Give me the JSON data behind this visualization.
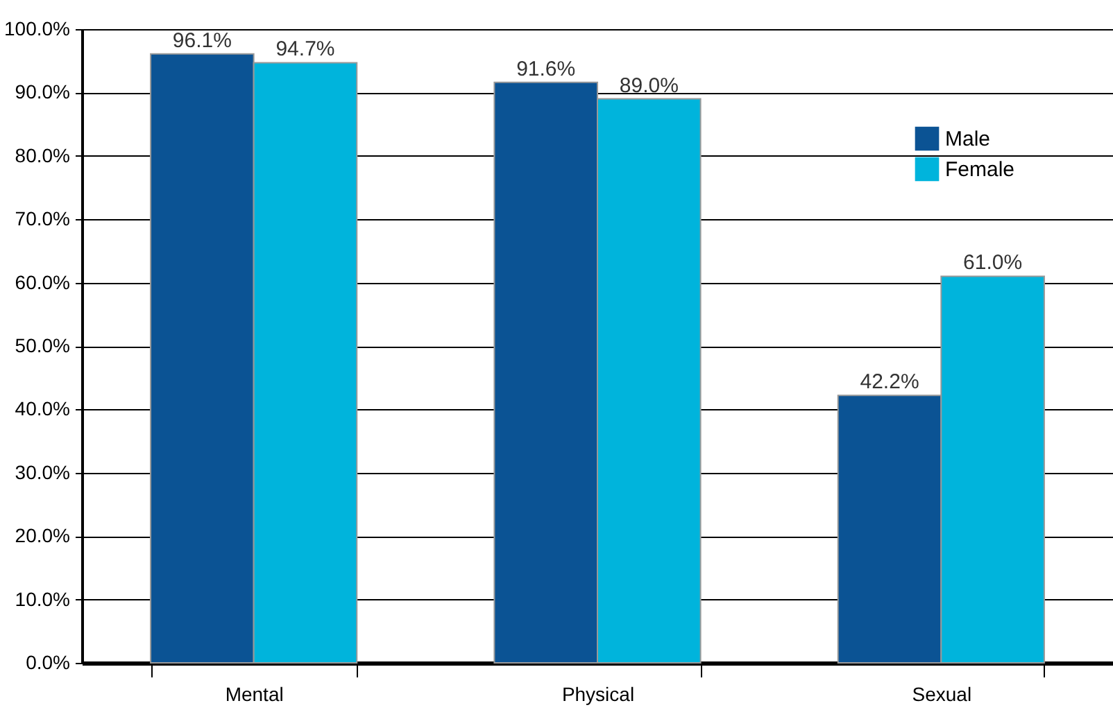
{
  "chart_data": {
    "type": "bar",
    "categories": [
      "Mental",
      "Physical",
      "Sexual"
    ],
    "series": [
      {
        "name": "Male",
        "color": "#0b5394",
        "values": [
          96.1,
          91.6,
          42.2
        ],
        "value_labels": [
          "96.1%",
          "91.6%",
          "42.2%"
        ]
      },
      {
        "name": "Female",
        "color": "#00b4dc",
        "values": [
          94.7,
          89.0,
          61.0
        ],
        "value_labels": [
          "94.7%",
          "89.0%",
          "61.0%"
        ]
      }
    ],
    "ylim": [
      0,
      100
    ],
    "yticks": [
      {
        "value": 0,
        "label": "0.0%"
      },
      {
        "value": 10,
        "label": "10.0%"
      },
      {
        "value": 20,
        "label": "20.0%"
      },
      {
        "value": 30,
        "label": "30.0%"
      },
      {
        "value": 40,
        "label": "40.0%"
      },
      {
        "value": 50,
        "label": "50.0%"
      },
      {
        "value": 60,
        "label": "60.0%"
      },
      {
        "value": 70,
        "label": "70.0%"
      },
      {
        "value": 80,
        "label": "80.0%"
      },
      {
        "value": 90,
        "label": "90.0%"
      },
      {
        "value": 100,
        "label": "100.0%"
      }
    ],
    "grid": "y",
    "legend": "top right"
  }
}
